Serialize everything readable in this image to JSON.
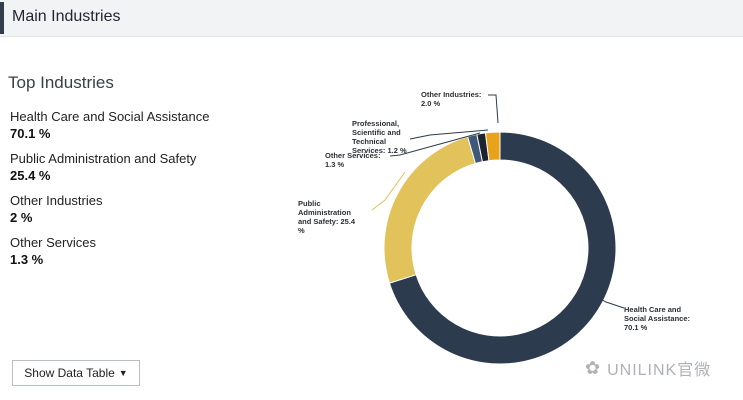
{
  "header": {
    "title": "Main Industries"
  },
  "top_industries": {
    "title": "Top Industries",
    "items": [
      {
        "label": "Health Care and Social Assistance",
        "value": "70.1 %"
      },
      {
        "label": "Public Administration and Safety",
        "value": "25.4 %"
      },
      {
        "label": "Other Industries",
        "value": "2 %"
      },
      {
        "label": "Other Services",
        "value": "1.3 %"
      }
    ]
  },
  "button": {
    "label": "Show Data Table"
  },
  "watermark": {
    "text": "UNILINK官微"
  },
  "chart_data": {
    "type": "pie",
    "donut": true,
    "slices": [
      {
        "label": "Health Care and Social Assistance",
        "value": 70.1,
        "color": "#2c3b4e"
      },
      {
        "label": "Public Administration and Safety",
        "value": 25.4,
        "color": "#e2c25a"
      },
      {
        "label": "Other Services",
        "value": 1.3,
        "color": "#3d5878"
      },
      {
        "label": "Professional, Scientific and Technical Services",
        "value": 1.2,
        "color": "#1c2430"
      },
      {
        "label": "Other Industries",
        "value": 2.0,
        "color": "#e8a31a"
      }
    ],
    "annotations": [
      {
        "lines": [
          "Health Care and",
          "Social Assistance:",
          "70.1 %"
        ]
      },
      {
        "lines": [
          "Public",
          "Administration",
          "and Safety: 25.4",
          "%"
        ]
      },
      {
        "lines": [
          "Other Services:",
          "1.3 %"
        ]
      },
      {
        "lines": [
          "Professional,",
          "Scientific and",
          "Technical",
          "Services: 1.2 %"
        ]
      },
      {
        "lines": [
          "Other Industries:",
          "2.0 %"
        ]
      }
    ]
  }
}
